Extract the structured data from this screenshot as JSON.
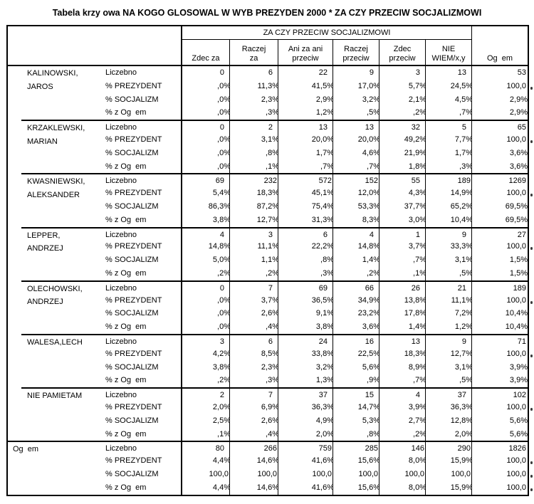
{
  "title": "Tabela krzy owa NA KOGO GLOSOWAL W WYB PREZYDEN 2000 * ZA CZY PRZECIW SOCJALIZMOWI",
  "table": {
    "span_header": "ZA CZY PRZECIW SOCJALIZMOWI",
    "column_headers": [
      "Zdec za",
      "Raczej\nza",
      "Ani za ani\nprzeciw",
      "Raczej\nprzeciw",
      "Zdec\nprzeciw",
      "NIE\nWIEM/x,y",
      "Og  em"
    ],
    "row_stat_labels": [
      "Liczebno",
      "% PREZYDENT",
      "% SOCJALIZM",
      "% z Og  em"
    ],
    "row_groups": [
      {
        "label": "KALINOWSKI,\nJAROS",
        "level": 2,
        "rows": [
          [
            "0",
            "6",
            "22",
            "9",
            "3",
            "13",
            "53"
          ],
          [
            ",0%",
            "11,3%",
            "41,5%",
            "17,0%",
            "5,7%",
            "24,5%",
            "100,0"
          ],
          [
            ",0%",
            "2,3%",
            "2,9%",
            "3,2%",
            "2,1%",
            "4,5%",
            "2,9%"
          ],
          [
            ",0%",
            ",3%",
            "1,2%",
            ",5%",
            ",2%",
            ",7%",
            "2,9%"
          ]
        ]
      },
      {
        "label": "KRZAKLEWSKI,\nMARIAN",
        "level": 2,
        "rows": [
          [
            "0",
            "2",
            "13",
            "13",
            "32",
            "5",
            "65"
          ],
          [
            ",0%",
            "3,1%",
            "20,0%",
            "20,0%",
            "49,2%",
            "7,7%",
            "100,0"
          ],
          [
            ",0%",
            ",8%",
            "1,7%",
            "4,6%",
            "21,9%",
            "1,7%",
            "3,6%"
          ],
          [
            ",0%",
            ",1%",
            ",7%",
            ",7%",
            "1,8%",
            ",3%",
            "3,6%"
          ]
        ]
      },
      {
        "label": "KWASNIEWSKI,\nALEKSANDER",
        "level": 2,
        "rows": [
          [
            "69",
            "232",
            "572",
            "152",
            "55",
            "189",
            "1269"
          ],
          [
            "5,4%",
            "18,3%",
            "45,1%",
            "12,0%",
            "4,3%",
            "14,9%",
            "100,0"
          ],
          [
            "86,3%",
            "87,2%",
            "75,4%",
            "53,3%",
            "37,7%",
            "65,2%",
            "69,5%"
          ],
          [
            "3,8%",
            "12,7%",
            "31,3%",
            "8,3%",
            "3,0%",
            "10,4%",
            "69,5%"
          ]
        ]
      },
      {
        "label": "LEPPER,\nANDRZEJ",
        "level": 2,
        "rows": [
          [
            "4",
            "3",
            "6",
            "4",
            "1",
            "9",
            "27"
          ],
          [
            "14,8%",
            "11,1%",
            "22,2%",
            "14,8%",
            "3,7%",
            "33,3%",
            "100,0"
          ],
          [
            "5,0%",
            "1,1%",
            ",8%",
            "1,4%",
            ",7%",
            "3,1%",
            "1,5%"
          ],
          [
            ",2%",
            ",2%",
            ",3%",
            ",2%",
            ",1%",
            ",5%",
            "1,5%"
          ]
        ]
      },
      {
        "label": "OLECHOWSKI,\nANDRZEJ",
        "level": 2,
        "rows": [
          [
            "0",
            "7",
            "69",
            "66",
            "26",
            "21",
            "189"
          ],
          [
            ",0%",
            "3,7%",
            "36,5%",
            "34,9%",
            "13,8%",
            "11,1%",
            "100,0"
          ],
          [
            ",0%",
            "2,6%",
            "9,1%",
            "23,2%",
            "17,8%",
            "7,2%",
            "10,4%"
          ],
          [
            ",0%",
            ",4%",
            "3,8%",
            "3,6%",
            "1,4%",
            "1,2%",
            "10,4%"
          ]
        ]
      },
      {
        "label": "WALESA,LECH",
        "level": 2,
        "rows": [
          [
            "3",
            "6",
            "24",
            "16",
            "13",
            "9",
            "71"
          ],
          [
            "4,2%",
            "8,5%",
            "33,8%",
            "22,5%",
            "18,3%",
            "12,7%",
            "100,0"
          ],
          [
            "3,8%",
            "2,3%",
            "3,2%",
            "5,6%",
            "8,9%",
            "3,1%",
            "3,9%"
          ],
          [
            ",2%",
            ",3%",
            "1,3%",
            ",9%",
            ",7%",
            ",5%",
            "3,9%"
          ]
        ]
      },
      {
        "label": "NIE PAMIETAM",
        "level": 2,
        "rows": [
          [
            "2",
            "7",
            "37",
            "15",
            "4",
            "37",
            "102"
          ],
          [
            "2,0%",
            "6,9%",
            "36,3%",
            "14,7%",
            "3,9%",
            "36,3%",
            "100,0"
          ],
          [
            "2,5%",
            "2,6%",
            "4,9%",
            "5,3%",
            "2,7%",
            "12,8%",
            "5,6%"
          ],
          [
            ",1%",
            ",4%",
            "2,0%",
            ",8%",
            ",2%",
            "2,0%",
            "5,6%"
          ]
        ]
      },
      {
        "label": "Og  em",
        "level": 1,
        "rows": [
          [
            "80",
            "266",
            "759",
            "285",
            "146",
            "290",
            "1826"
          ],
          [
            "4,4%",
            "14,6%",
            "41,6%",
            "15,6%",
            "8,0%",
            "15,9%",
            "100,0"
          ],
          [
            "100,0",
            "100,0",
            "100,0",
            "100,0",
            "100,0",
            "100,0",
            "100,0"
          ],
          [
            "4,4%",
            "14,6%",
            "41,6%",
            "15,6%",
            "8,0%",
            "15,9%",
            "100,0"
          ]
        ]
      }
    ]
  }
}
